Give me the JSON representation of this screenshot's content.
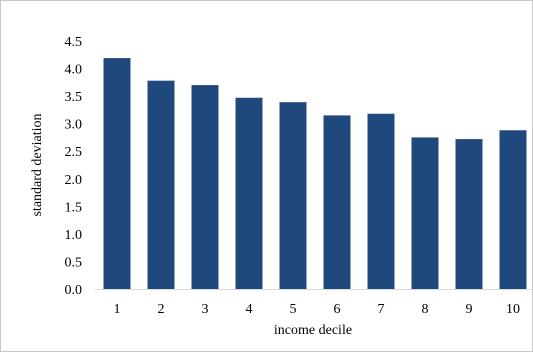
{
  "chart_data": {
    "type": "bar",
    "title": "",
    "xlabel": "income decile",
    "ylabel": "standard deviation",
    "categories": [
      "1",
      "2",
      "3",
      "4",
      "5",
      "6",
      "7",
      "8",
      "9",
      "10"
    ],
    "values": [
      4.19,
      3.78,
      3.7,
      3.47,
      3.39,
      3.15,
      3.18,
      2.75,
      2.72,
      2.88
    ],
    "ylim": [
      0,
      4.5
    ],
    "yticks": [
      "0.0",
      "0.5",
      "1.0",
      "1.5",
      "2.0",
      "2.5",
      "3.0",
      "3.5",
      "4.0",
      "4.5"
    ],
    "grid": false,
    "legend": "none",
    "bar_color": "#1f497d"
  }
}
